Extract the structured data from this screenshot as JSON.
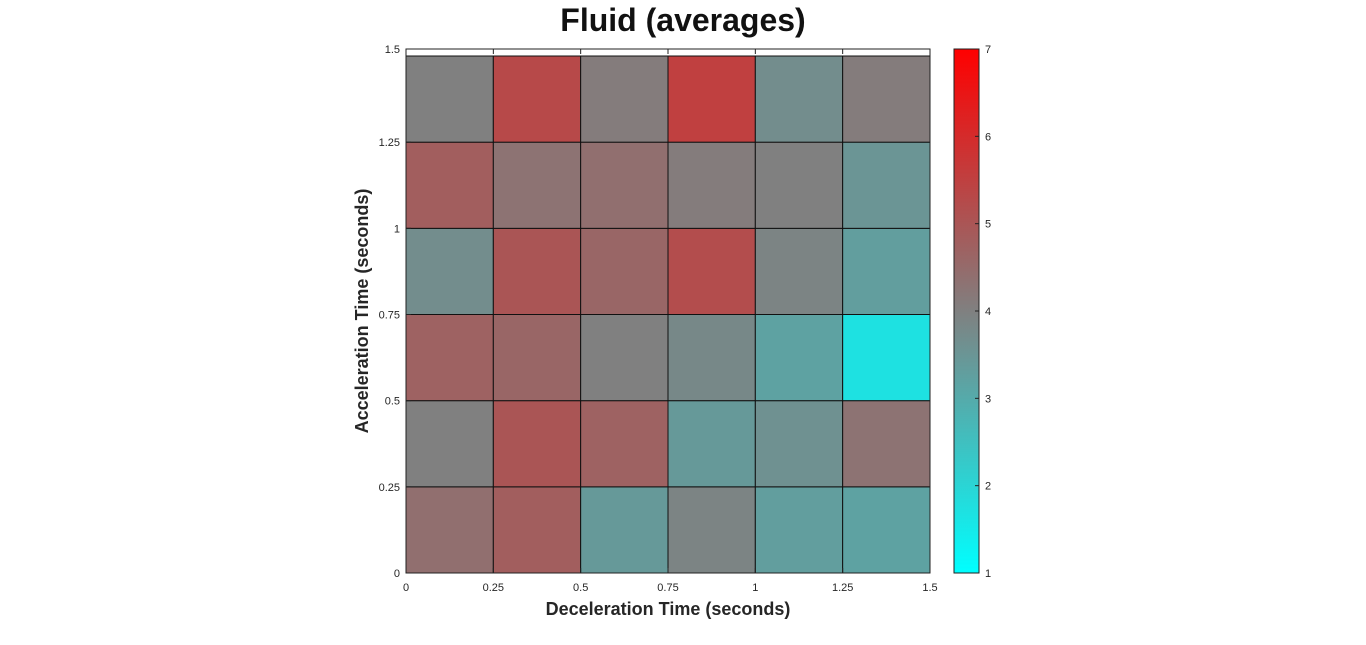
{
  "chart_data": {
    "type": "heatmap",
    "title": "Fluid (averages)",
    "xlabel": "Deceleration Time (seconds)",
    "ylabel": "Acceleration Time (seconds)",
    "x_edges": [
      0,
      0.25,
      0.5,
      0.75,
      1,
      1.25,
      1.5
    ],
    "y_edges": [
      0,
      0.25,
      0.5,
      0.75,
      1,
      1.25,
      1.5
    ],
    "xlim": [
      0,
      1.5
    ],
    "ylim": [
      0,
      1.5
    ],
    "x_ticks": [
      "0",
      "0.25",
      "0.5",
      "0.75",
      "1",
      "1.25",
      "1.5"
    ],
    "y_ticks": [
      "0",
      "0.25",
      "0.5",
      "0.75",
      "1",
      "1.25",
      "1.5"
    ],
    "values": [
      [
        4.4,
        4.8,
        3.4,
        3.9,
        3.3,
        3.2
      ],
      [
        4.0,
        5.0,
        4.7,
        3.4,
        3.6,
        4.3
      ],
      [
        4.7,
        4.6,
        4.0,
        3.8,
        3.2,
        1.7
      ],
      [
        3.7,
        5.0,
        4.6,
        5.2,
        3.9,
        3.3
      ],
      [
        4.8,
        4.3,
        4.4,
        4.1,
        4.0,
        3.5
      ],
      [
        4.0,
        5.3,
        4.1,
        5.5,
        3.7,
        4.1
      ]
    ],
    "colorbar": {
      "min": 1,
      "max": 7,
      "ticks": [
        "1",
        "2",
        "3",
        "4",
        "5",
        "6",
        "7"
      ],
      "colors": {
        "low": "#00ffff",
        "mid": "#808080",
        "high": "#ff0000"
      }
    },
    "grid": true
  }
}
